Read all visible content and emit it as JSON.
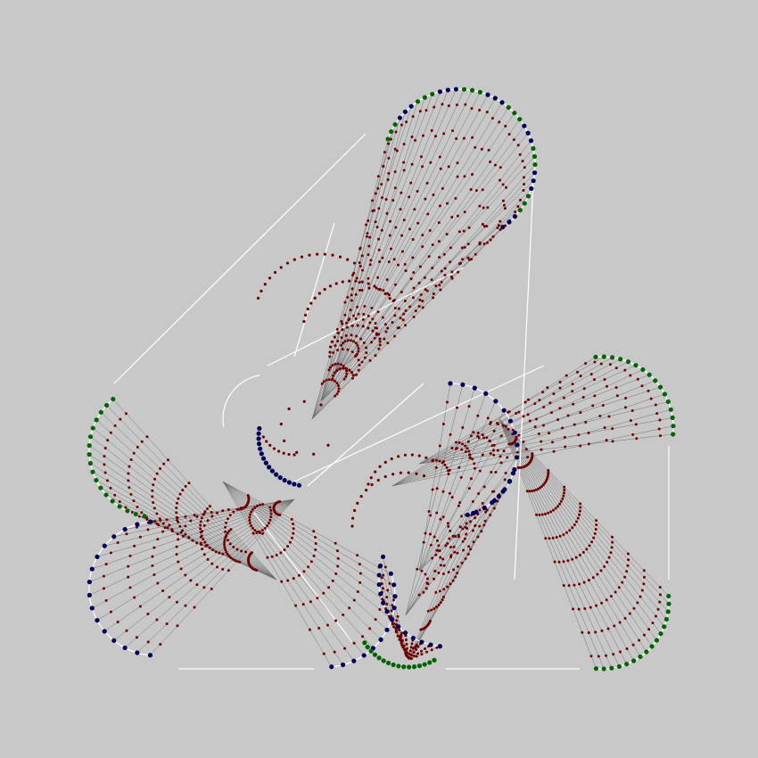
{
  "colors": {
    "background": "#c8c8c8",
    "outline": "#ffffff",
    "connector": "#6b6b6b",
    "green_node": "#006400",
    "blue_node": "#00005a",
    "red_node": "#6e0000"
  },
  "legend": []
}
